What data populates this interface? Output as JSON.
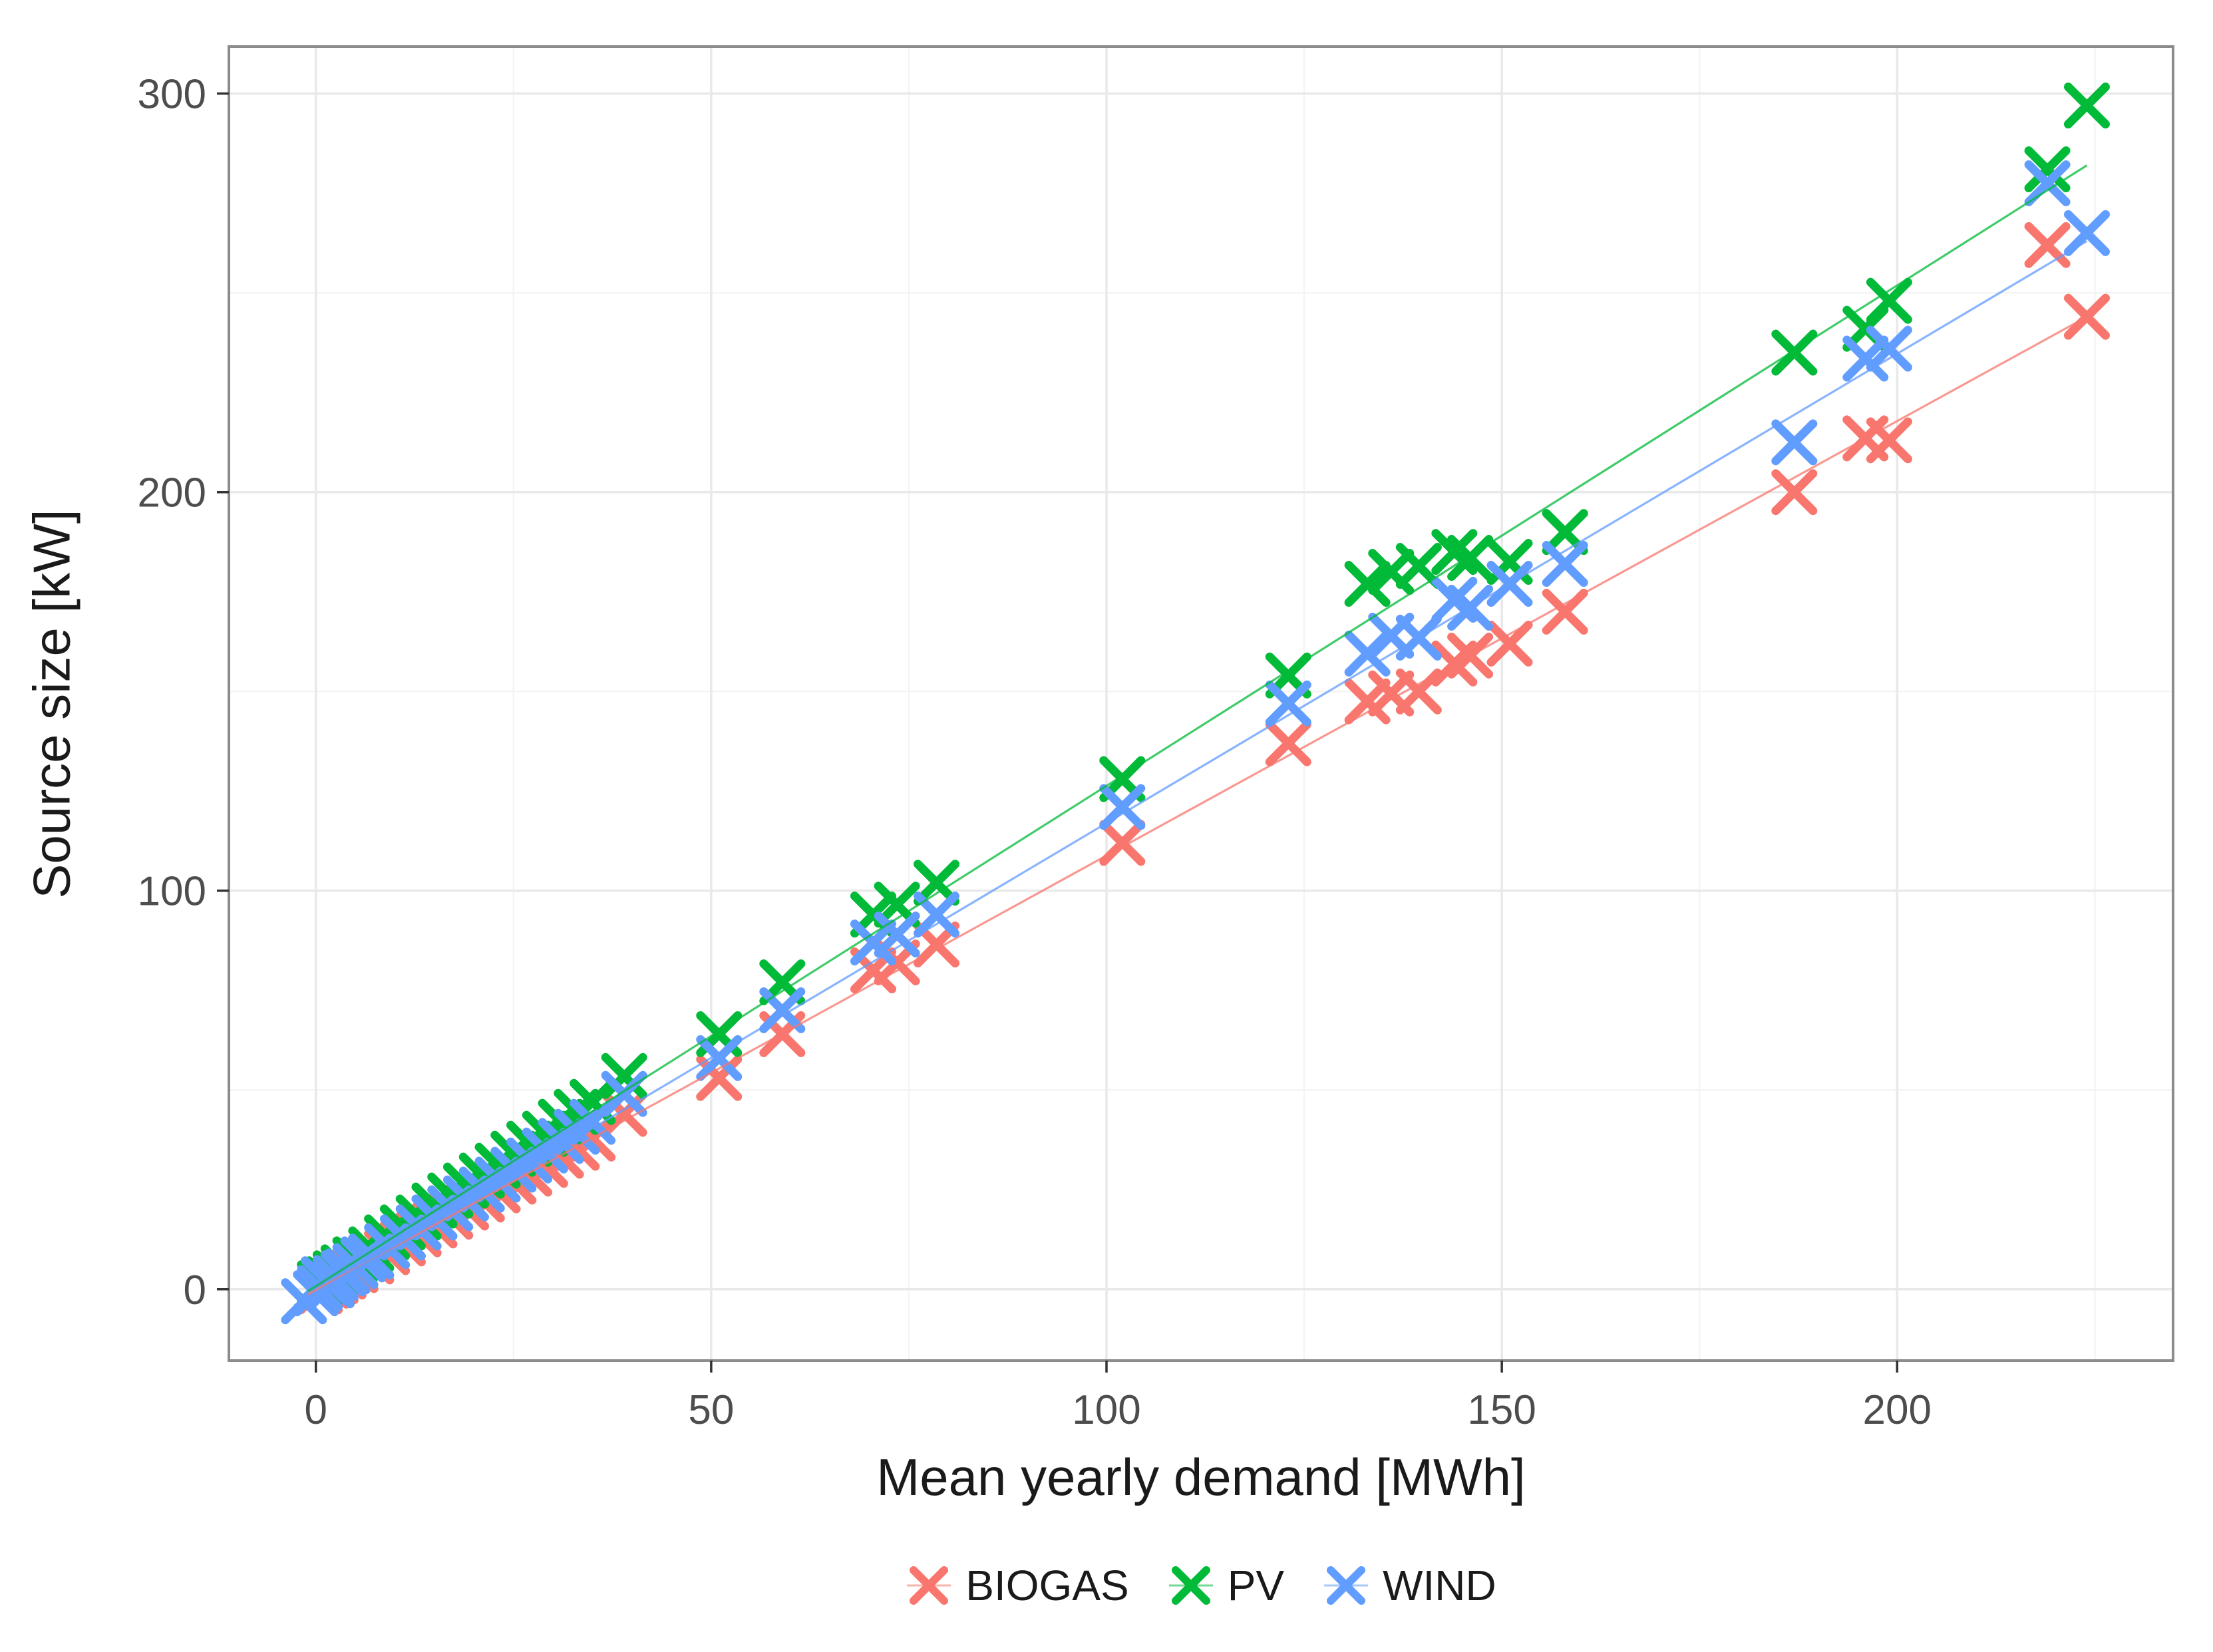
{
  "figure_type": "ggplot-style scatter plot with linear trend lines",
  "title": "",
  "axes": {
    "x_title": "Mean yearly demand [MWh]",
    "y_title": "Source size [kW]",
    "x_tick_labels": [
      "0",
      "50",
      "100",
      "150",
      "200"
    ],
    "y_tick_labels": [
      "0",
      "100",
      "200",
      "300"
    ]
  },
  "legend": {
    "position": "bottom",
    "items": [
      {
        "label": "BIOGAS",
        "color": "#F8766D"
      },
      {
        "label": "PV",
        "color": "#00BA38"
      },
      {
        "label": "WIND",
        "color": "#619CFF"
      }
    ]
  },
  "style": {
    "panel_background": "#ffffff",
    "panel_border_color": "#8c8c8c",
    "grid_major_color": "#e9e9e9",
    "grid_minor_color": "#f4f4f4",
    "tick_color": "#333333",
    "tick_label_color": "#4d4d4d",
    "marker": "x-cross",
    "marker_half_size": 28,
    "marker_stroke_width": 13
  },
  "chart_data": {
    "type": "scatter",
    "title": "",
    "xlabel": "Mean yearly demand [MWh]",
    "ylabel": "Source size [kW]",
    "xlim": [
      -11,
      234.9
    ],
    "ylim": [
      -17.9,
      311.8
    ],
    "x_ticks": [
      0,
      50,
      100,
      150,
      200
    ],
    "y_ticks": [
      0,
      100,
      200,
      300
    ],
    "x_minor_ticks": [
      25,
      75,
      125,
      175,
      225
    ],
    "y_minor_ticks": [
      50,
      150,
      250
    ],
    "grid": "major+minor",
    "legend_position": "bottom",
    "series": [
      {
        "name": "BIOGAS",
        "color": "#F8766D",
        "trend_line": {
          "x1": -1,
          "y1": -1.3,
          "x2": 224,
          "y2": 244
        },
        "points": [
          [
            0.5,
            -0.5
          ],
          [
            1.5,
            0.9
          ],
          [
            2.5,
            2
          ],
          [
            3.5,
            3.2
          ],
          [
            5,
            4.8
          ],
          [
            7,
            7
          ],
          [
            9,
            9.3
          ],
          [
            11,
            11.5
          ],
          [
            13,
            13.8
          ],
          [
            15,
            16
          ],
          [
            17,
            18.2
          ],
          [
            19,
            20.5
          ],
          [
            21,
            22.5
          ],
          [
            23,
            24.8
          ],
          [
            25,
            27
          ],
          [
            27,
            29
          ],
          [
            29,
            31.2
          ],
          [
            31,
            33.5
          ],
          [
            33,
            35.5
          ],
          [
            35,
            37.8
          ],
          [
            39,
            44
          ],
          [
            51,
            53
          ],
          [
            59,
            64
          ],
          [
            70.5,
            80
          ],
          [
            73.5,
            82
          ],
          [
            78.5,
            86.5
          ],
          [
            102,
            112
          ],
          [
            123,
            137
          ],
          [
            133,
            147.5
          ],
          [
            136,
            149.5
          ],
          [
            139.5,
            150
          ],
          [
            144,
            157
          ],
          [
            146,
            159
          ],
          [
            151,
            162
          ],
          [
            158,
            170
          ],
          [
            187,
            200
          ],
          [
            196,
            213.5
          ],
          [
            199,
            213
          ],
          [
            219,
            262
          ],
          [
            224,
            244
          ]
        ]
      },
      {
        "name": "PV",
        "color": "#00BA38",
        "trend_line": {
          "x1": -1,
          "y1": -0.5,
          "x2": 224,
          "y2": 282
        },
        "points": [
          [
            0.5,
            1.5
          ],
          [
            1.5,
            2.5
          ],
          [
            2.5,
            4
          ],
          [
            3.5,
            5.5
          ],
          [
            5,
            7.5
          ],
          [
            7,
            10
          ],
          [
            9,
            13
          ],
          [
            11,
            15.5
          ],
          [
            13,
            18
          ],
          [
            15,
            21
          ],
          [
            17,
            23.5
          ],
          [
            19,
            26
          ],
          [
            21,
            28.5
          ],
          [
            23,
            31
          ],
          [
            25,
            34
          ],
          [
            27,
            36.5
          ],
          [
            29,
            39
          ],
          [
            31,
            42
          ],
          [
            33,
            44.5
          ],
          [
            35,
            47
          ],
          [
            39,
            53.5
          ],
          [
            51,
            64
          ],
          [
            59,
            77
          ],
          [
            70.5,
            94
          ],
          [
            73.5,
            96.5
          ],
          [
            78.5,
            102
          ],
          [
            102,
            128
          ],
          [
            123,
            154
          ],
          [
            133,
            177
          ],
          [
            136,
            180
          ],
          [
            139.5,
            181.5
          ],
          [
            144,
            185
          ],
          [
            146,
            183.5
          ],
          [
            151,
            182.5
          ],
          [
            158,
            190
          ],
          [
            187,
            235
          ],
          [
            196,
            241
          ],
          [
            199,
            248
          ],
          [
            219,
            281
          ],
          [
            224,
            297
          ]
        ]
      },
      {
        "name": "WIND",
        "color": "#619CFF",
        "trend_line": {
          "x1": -2.7,
          "y1": -4,
          "x2": 224,
          "y2": 263
        },
        "points": [
          [
            -1.5,
            -3
          ],
          [
            0,
            -1
          ],
          [
            1,
            2.5
          ],
          [
            2,
            1
          ],
          [
            4,
            4.5
          ],
          [
            6,
            7.5
          ],
          [
            0.5,
            0.3
          ],
          [
            1.5,
            1.6
          ],
          [
            2.5,
            2.8
          ],
          [
            3.5,
            4
          ],
          [
            5,
            5.8
          ],
          [
            7,
            8.2
          ],
          [
            9,
            10.8
          ],
          [
            11,
            13
          ],
          [
            13,
            15.5
          ],
          [
            15,
            18
          ],
          [
            17,
            20.3
          ],
          [
            19,
            22.8
          ],
          [
            21,
            25
          ],
          [
            23,
            27.5
          ],
          [
            25,
            30
          ],
          [
            27,
            32.3
          ],
          [
            29,
            34.8
          ],
          [
            31,
            37.2
          ],
          [
            33,
            39.5
          ],
          [
            35,
            42
          ],
          [
            39,
            49
          ],
          [
            51,
            58
          ],
          [
            59,
            70
          ],
          [
            70.5,
            87
          ],
          [
            73.5,
            89
          ],
          [
            78.5,
            94
          ],
          [
            102,
            121
          ],
          [
            123,
            147
          ],
          [
            133,
            159.5
          ],
          [
            136,
            164
          ],
          [
            139.5,
            163.5
          ],
          [
            144,
            173
          ],
          [
            146,
            171
          ],
          [
            151,
            177
          ],
          [
            158,
            182
          ],
          [
            187,
            212.5
          ],
          [
            196,
            233.5
          ],
          [
            199,
            236
          ],
          [
            219,
            277.5
          ],
          [
            224,
            265
          ]
        ]
      }
    ]
  }
}
